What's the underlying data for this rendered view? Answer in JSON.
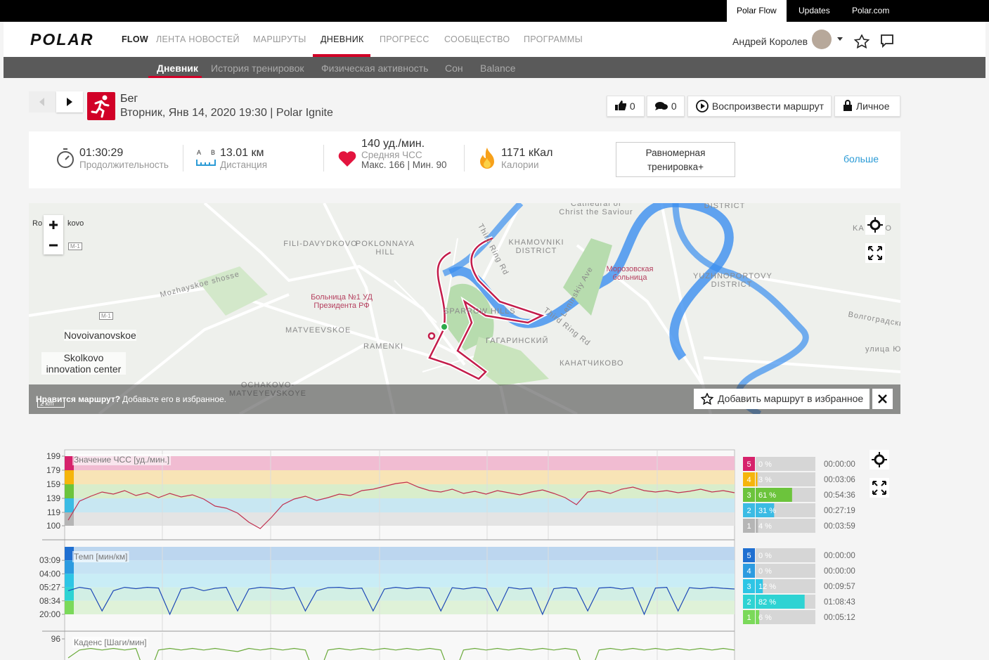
{
  "top_links": [
    "Polar Flow",
    "Updates",
    "Polar.com"
  ],
  "nav": {
    "logo": "POLAR",
    "items": [
      "FLOW",
      "ЛЕНТА НОВОСТЕЙ",
      "МАРШРУТЫ",
      "ДНЕВНИК",
      "ПРОГРЕСС",
      "СООБЩЕСТВО",
      "ПРОГРАММЫ"
    ],
    "user": "Андрей Королев"
  },
  "subnav": [
    "Дневник",
    "История тренировок",
    "Физическая активность",
    "Сон",
    "Balance"
  ],
  "session": {
    "sport": "Бег",
    "datetime": "Вторник, Янв 14, 2020 19:30 | Polar Ignite",
    "likes": "0",
    "comments": "0",
    "replay": "Воспроизвести маршрут",
    "privacy": "Личное"
  },
  "summary": {
    "duration": "01:30:29",
    "duration_label": "Продолжительность",
    "distance_a": "A",
    "distance_b": "B",
    "distance": "13.01 км",
    "distance_label": "Дистанция",
    "hr": "140 уд./мин.",
    "hr_label": "Средняя ЧСС",
    "hr_minmax": "Макс. 166 | Мин. 90",
    "calories": "1171 кКал",
    "calories_label": "Калории",
    "benefit": "Равномерная тренировка+",
    "more": "больше"
  },
  "map": {
    "labels": [
      "Cathedral of Christ the Saviour",
      "DISTRICT",
      "Third Ring Rd",
      "POKLONNAYA HILL",
      "FILI-DAVYDKOVO",
      "KHAMOVNIKI DISTRICT",
      "Mozhayskoe shosse",
      "Больница №1 УД Президента РФ",
      "Морозовская больница",
      "YUZHNOPORTOVY DISTRICT",
      "Leninskiy Ave",
      "MATVEEVSKOE",
      "SPARROW HILLS",
      "Third Ring Rd",
      "ГАГАРИНСКИЙ",
      "RAMENKI",
      "Novoivanovskoe",
      "Skolkovo innovation center",
      "OCHAKOVO-MATVEYEVSKOYE",
      "КАНАТЧИКОВО",
      "Волгоградский",
      "улица Ю",
      "M-1",
      "M-1",
      "Ro",
      "kovo",
      "KA",
      "PO"
    ],
    "banner_question": "Нравится маршрут?",
    "banner_text": "Добавьте его в избранное.",
    "favorite": "Добавить маршрут в избранное",
    "scale": "2 km"
  },
  "charts": {
    "hr": {
      "title": "Значение ЧСС [уд./мин.]",
      "ylim": [
        80,
        208
      ],
      "yticks": [
        199,
        179,
        159,
        139,
        119,
        100
      ],
      "color": "#c0304f",
      "values": [
        108,
        135,
        142,
        148,
        145,
        150,
        143,
        147,
        140,
        146,
        141,
        144,
        138,
        128,
        125,
        118,
        105,
        96,
        112,
        130,
        138,
        142,
        136,
        140,
        145,
        143,
        150,
        152,
        156,
        160,
        162,
        155,
        150,
        148,
        152,
        146,
        149,
        145,
        150,
        147,
        144,
        148,
        151,
        146,
        140,
        130,
        148,
        150,
        146,
        152,
        155,
        150,
        148,
        150,
        147,
        149,
        152,
        148,
        150,
        147
      ],
      "zones": [
        {
          "zone": "5",
          "percent": 0,
          "percent_label": "0 %",
          "time": "00:00:00",
          "color": "#d6226b",
          "band": "#f1bcd2"
        },
        {
          "zone": "4",
          "percent": 3,
          "percent_label": "3 %",
          "time": "00:03:06",
          "color": "#f5b50c",
          "band": "#f8e4b6"
        },
        {
          "zone": "3",
          "percent": 61,
          "percent_label": "61 %",
          "time": "00:54:36",
          "color": "#6cc43c",
          "band": "#d9edcb"
        },
        {
          "zone": "2",
          "percent": 31,
          "percent_label": "31 %",
          "time": "00:27:19",
          "color": "#3bbbe4",
          "band": "#c8e7f2"
        },
        {
          "zone": "1",
          "percent": 4,
          "percent_label": "4 %",
          "time": "00:03:59",
          "color": "#b5b5b5",
          "band": "#e4e4e4"
        }
      ]
    },
    "pace": {
      "title": "Темп [мин/км]",
      "ylim": [
        -2,
        23
      ],
      "yticks": [
        {
          "value": 19,
          "label": "03:09"
        },
        {
          "value": 15,
          "label": "04:00"
        },
        {
          "value": 11,
          "label": "05:27"
        },
        {
          "value": 7,
          "label": "08:34"
        },
        {
          "value": 3,
          "label": "20:00"
        }
      ],
      "color": "#1d49b8",
      "values": [
        10,
        11,
        10.5,
        4,
        10,
        11,
        10.6,
        11,
        10.8,
        3,
        10.5,
        11,
        10,
        10.7,
        11,
        4,
        10.5,
        11,
        10.8,
        10.5,
        11,
        4,
        10,
        10.9,
        11,
        10.6,
        10.8,
        4,
        10.5,
        11,
        10.6,
        11,
        10.8,
        4,
        10.9,
        10.5,
        11,
        10.6,
        4,
        11,
        10.5,
        10.8,
        3,
        10.6,
        11,
        10.7,
        4,
        10.8,
        11,
        10.5,
        10.9,
        3,
        10.8,
        11,
        4,
        10.9,
        10.6,
        11,
        10.7,
        10.5
      ],
      "zones": [
        {
          "zone": "5",
          "percent": 0,
          "percent_label": "0 %",
          "time": "00:00:00",
          "color": "#1f6fd1",
          "band": "#bcd6ef"
        },
        {
          "zone": "4",
          "percent": 0,
          "percent_label": "0 %",
          "time": "00:00:00",
          "color": "#2c9be0",
          "band": "#c6e3f4"
        },
        {
          "zone": "3",
          "percent": 12,
          "percent_label": "12 %",
          "time": "00:09:57",
          "color": "#2ec5e5",
          "band": "#c9edf6"
        },
        {
          "zone": "2",
          "percent": 82,
          "percent_label": "82 %",
          "time": "01:08:43",
          "color": "#2ed3d3",
          "band": "#d2efe5"
        },
        {
          "zone": "1",
          "percent": 6,
          "percent_label": "6 %",
          "time": "00:05:12",
          "color": "#7bd95a",
          "band": "#dff2d8"
        }
      ]
    },
    "cadence": {
      "title": "Каденс [Шаги/мин]",
      "ylim": [
        40,
        100
      ],
      "yticks": [
        96
      ],
      "color": "#6aaa3a",
      "values": [
        84,
        89,
        90,
        89,
        90,
        89,
        90,
        70,
        89,
        90,
        89,
        90,
        89,
        90,
        89,
        88,
        90,
        89,
        90,
        89,
        90,
        89,
        70,
        89,
        90,
        89,
        90,
        89,
        90,
        89,
        90,
        89,
        90,
        89,
        70,
        89,
        90,
        89,
        90,
        89,
        90,
        89,
        90,
        89,
        90,
        89,
        70,
        89,
        90,
        89,
        90,
        89,
        90,
        89,
        90,
        89,
        90,
        89,
        90,
        89
      ]
    }
  }
}
